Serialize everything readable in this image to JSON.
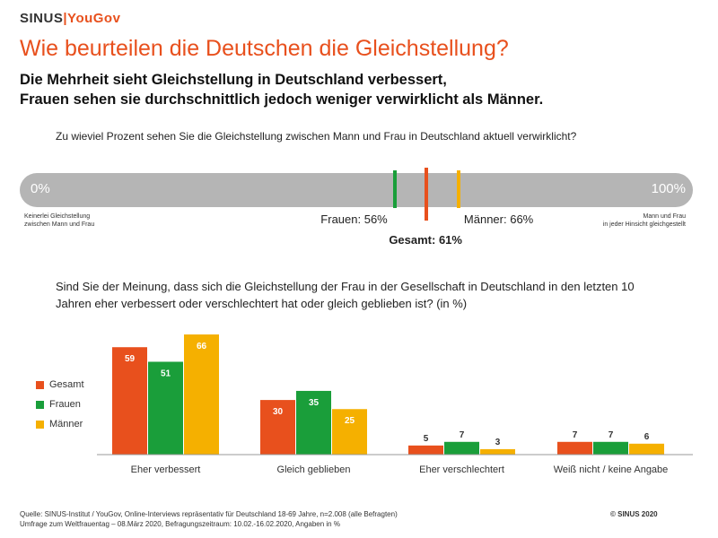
{
  "header": {
    "logo_left": "SINUS",
    "logo_sep": "|",
    "logo_right": "YouGov",
    "title": "Wie beurteilen die Deutschen die Gleichstellung?",
    "subtitle_line1": "Die Mehrheit sieht Gleichstellung in Deutschland verbessert,",
    "subtitle_line2": "Frauen sehen sie durchschnittlich jedoch weniger verwirklicht als Männer."
  },
  "scale": {
    "question": "Zu wieviel Prozent sehen Sie die Gleichstellung zwischen Mann und Frau in Deutschland aktuell verwirklicht?",
    "min_label": "0%",
    "max_label": "100%",
    "left_note_line1": "Keinerlei Gleichstellung",
    "left_note_line2": "zwischen Mann und Frau",
    "right_note_line1": "Mann und Frau",
    "right_note_line2": "in jeder Hinsicht gleichgestellt",
    "markers": [
      {
        "label": "Frauen: 56%",
        "value": 56,
        "color": "#1a9e3a"
      },
      {
        "label": "Gesamt: 61%",
        "value": 61,
        "color": "#e8501d"
      },
      {
        "label": "Männer: 66%",
        "value": 66,
        "color": "#f5b000"
      }
    ]
  },
  "question2": "Sind Sie der Meinung, dass sich die Gleichstellung der Frau in der Gesellschaft in Deutschland in den letzten 10 Jahren eher verbessert oder verschlechtert hat oder gleich geblieben ist? (in %)",
  "chart_data": {
    "type": "bar",
    "categories": [
      "Eher verbessert",
      "Gleich geblieben",
      "Eher verschlechtert",
      "Weiß nicht / keine Angabe"
    ],
    "series": [
      {
        "name": "Gesamt",
        "values": [
          59,
          30,
          5,
          7
        ],
        "color": "#e8501d"
      },
      {
        "name": "Frauen",
        "values": [
          51,
          35,
          7,
          7
        ],
        "color": "#1a9e3a"
      },
      {
        "name": "Männer",
        "values": [
          66,
          25,
          3,
          6
        ],
        "color": "#f5b000"
      }
    ],
    "ylim": [
      0,
      66
    ],
    "legend_position": "left",
    "grid": false
  },
  "footer": {
    "line1": "Quelle: SINUS-Institut / YouGov, Online-Interviews repräsentativ für Deutschland 18-69 Jahre, n=2.008 (alle Befragten)",
    "line2": "Umfrage zum Weltfrauentag – 08.März 2020, Befragungszeitraum: 10.02.-16.02.2020, Angaben in %",
    "copyright": "© SINUS 2020"
  }
}
